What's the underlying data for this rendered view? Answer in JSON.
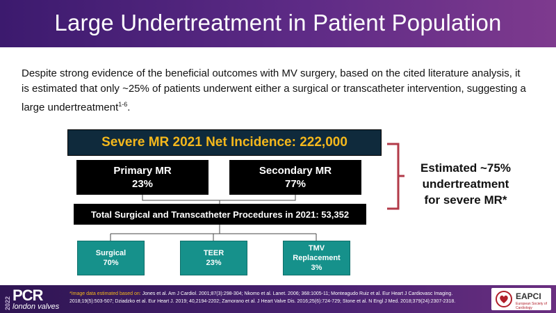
{
  "title": "Large Undertreatment in Patient Population",
  "intro": {
    "text": "Despite strong evidence of the beneficial outcomes with MV surgery, based on the cited literature analysis, it is estimated that only ~25% of patients underwent either a surgical or transcatheter intervention, suggesting a large undertreatment",
    "citation": "1-6",
    "end": "."
  },
  "diagram": {
    "incidence": "Severe MR 2021 Net Incidence: 222,000",
    "primary": {
      "label": "Primary MR",
      "value": "23%"
    },
    "secondary": {
      "label": "Secondary MR",
      "value": "77%"
    },
    "total": "Total Surgical and Transcatheter Procedures in 2021: 53,352",
    "procedures": [
      {
        "label": "Surgical",
        "value": "70%"
      },
      {
        "label": "TEER",
        "value": "23%"
      },
      {
        "label": "TMV",
        "label2": "Replacement",
        "value": "3%"
      }
    ],
    "estimate": [
      "Estimated ~75%",
      "undertreatment",
      "for severe MR*"
    ]
  },
  "footer": {
    "year": "2022",
    "brand": "PCR",
    "subbrand": "london valves",
    "refs_lead": "*Image data estimated based on: ",
    "refs_body": "Jones et al. Am J Cardiol. 2001;87(3):298-304; Nkomo et al. Lanet. 2006; 368:1005-11; Monteagudo Ruiz et al. Eur Heart J Cardiovasc Imaging. 2018;19(5):503-507; Dziadzko et al. Eur Heart J. 2019; 40,2194-2202; Zamorano et al. J Heart Valve Dis. 2016;25(6):724-729; Stone et al. N Engl J Med. 2018;379(24):2307-2318.",
    "logo_name": "EAPCI",
    "logo_sub": "European Society of Cardiology"
  },
  "colors": {
    "header": "#5e2b86",
    "incidence_bg": "#0f2a3c",
    "incidence_text": "#f5b81c",
    "teal": "#16918b",
    "bracket": "#b23a48"
  }
}
